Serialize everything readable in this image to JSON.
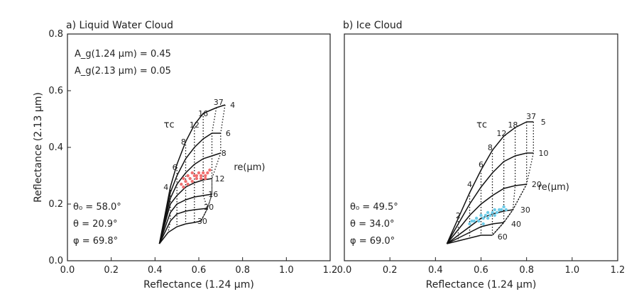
{
  "chart_data": [
    {
      "type": "line",
      "title": "a) Liquid Water Cloud",
      "xlabel": "Reflectance (1.24 µm)",
      "ylabel": "Reflectance (2.13 µm)",
      "xlim": [
        0.0,
        1.2
      ],
      "ylim": [
        0.0,
        0.8
      ],
      "xticks": [
        "0.0",
        "0.2",
        "0.4",
        "0.6",
        "0.8",
        "1.0",
        "1.2"
      ],
      "yticks": [
        "0.0",
        "0.2",
        "0.4",
        "0.6",
        "0.8"
      ],
      "grid": false,
      "annotations": {
        "albedo": [
          "A_g(1.24 µm) = 0.45",
          "A_g(2.13 µm) = 0.05"
        ],
        "geometry": [
          "θ₀ = 58.0°",
          "θ = 20.9°",
          "φ = 69.8°"
        ],
        "tau_symbol": "τc",
        "re_symbol": "re(µm)"
      },
      "tau_values": [
        "4",
        "6",
        "8",
        "12",
        "16",
        "37"
      ],
      "re_curves": [
        {
          "name": "4",
          "points": [
            [
              0.42,
              0.06
            ],
            [
              0.47,
              0.26
            ],
            [
              0.5,
              0.34
            ],
            [
              0.54,
              0.42
            ],
            [
              0.58,
              0.48
            ],
            [
              0.62,
              0.52
            ],
            [
              0.68,
              0.54
            ],
            [
              0.72,
              0.55
            ]
          ]
        },
        {
          "name": "6",
          "points": [
            [
              0.42,
              0.06
            ],
            [
              0.47,
              0.24
            ],
            [
              0.5,
              0.3
            ],
            [
              0.54,
              0.36
            ],
            [
              0.58,
              0.4
            ],
            [
              0.62,
              0.43
            ],
            [
              0.66,
              0.45
            ],
            [
              0.7,
              0.45
            ]
          ]
        },
        {
          "name": "8",
          "points": [
            [
              0.42,
              0.06
            ],
            [
              0.47,
              0.22
            ],
            [
              0.5,
              0.27
            ],
            [
              0.54,
              0.31
            ],
            [
              0.58,
              0.34
            ],
            [
              0.62,
              0.36
            ],
            [
              0.66,
              0.37
            ],
            [
              0.7,
              0.38
            ]
          ]
        },
        {
          "name": "12",
          "points": [
            [
              0.42,
              0.06
            ],
            [
              0.47,
              0.2
            ],
            [
              0.5,
              0.23
            ],
            [
              0.54,
              0.26
            ],
            [
              0.58,
              0.275
            ],
            [
              0.62,
              0.285
            ],
            [
              0.66,
              0.29
            ]
          ]
        },
        {
          "name": "16",
          "points": [
            [
              0.42,
              0.06
            ],
            [
              0.47,
              0.17
            ],
            [
              0.5,
              0.2
            ],
            [
              0.54,
              0.215
            ],
            [
              0.58,
              0.225
            ],
            [
              0.62,
              0.23
            ],
            [
              0.66,
              0.235
            ]
          ]
        },
        {
          "name": "20",
          "points": [
            [
              0.42,
              0.06
            ],
            [
              0.47,
              0.14
            ],
            [
              0.5,
              0.165
            ],
            [
              0.54,
              0.175
            ],
            [
              0.58,
              0.18
            ],
            [
              0.64,
              0.185
            ]
          ]
        },
        {
          "name": "30",
          "points": [
            [
              0.42,
              0.06
            ],
            [
              0.46,
              0.1
            ],
            [
              0.5,
              0.12
            ],
            [
              0.54,
              0.13
            ],
            [
              0.58,
              0.135
            ],
            [
              0.61,
              0.14
            ]
          ]
        }
      ],
      "tau_label_positions": [
        [
          0.45,
          0.25
        ],
        [
          0.49,
          0.32
        ],
        [
          0.53,
          0.41
        ],
        [
          0.58,
          0.47
        ],
        [
          0.62,
          0.51
        ],
        [
          0.69,
          0.55
        ]
      ],
      "re_label_positions": [
        [
          0.73,
          0.55
        ],
        [
          0.71,
          0.45
        ],
        [
          0.69,
          0.38
        ],
        [
          0.66,
          0.29
        ],
        [
          0.63,
          0.235
        ],
        [
          0.61,
          0.19
        ],
        [
          0.58,
          0.14
        ]
      ],
      "observations": {
        "name": "observed",
        "color": "#f07070",
        "points": [
          [
            0.52,
            0.27
          ],
          [
            0.53,
            0.29
          ],
          [
            0.54,
            0.28
          ],
          [
            0.55,
            0.3
          ],
          [
            0.56,
            0.29
          ],
          [
            0.57,
            0.31
          ],
          [
            0.58,
            0.3
          ],
          [
            0.59,
            0.3
          ],
          [
            0.6,
            0.31
          ],
          [
            0.61,
            0.3
          ],
          [
            0.62,
            0.31
          ],
          [
            0.63,
            0.3
          ],
          [
            0.64,
            0.31
          ],
          [
            0.65,
            0.32
          ],
          [
            0.53,
            0.26
          ],
          [
            0.55,
            0.27
          ],
          [
            0.57,
            0.28
          ],
          [
            0.59,
            0.29
          ],
          [
            0.61,
            0.29
          ],
          [
            0.63,
            0.29
          ]
        ]
      }
    },
    {
      "type": "line",
      "title": "b) Ice Cloud",
      "xlabel": "Reflectance (1.24 µm)",
      "ylabel": "",
      "xlim": [
        0.0,
        1.2
      ],
      "ylim": [
        0.0,
        0.8
      ],
      "xticks": [
        "0.0",
        "0.2",
        "0.4",
        "0.6",
        "0.8",
        "1.0",
        "1.2"
      ],
      "yticks": [],
      "grid": false,
      "annotations": {
        "geometry": [
          "θ₀ = 49.5°",
          "θ = 34.0°",
          "φ = 69.0°"
        ],
        "tau_symbol": "τc",
        "re_symbol": "re(µm)"
      },
      "tau_values": [
        "2",
        "4",
        "6",
        "8",
        "12",
        "18",
        "37"
      ],
      "re_curves": [
        {
          "name": "5",
          "points": [
            [
              0.45,
              0.06
            ],
            [
              0.5,
              0.15
            ],
            [
              0.55,
              0.24
            ],
            [
              0.6,
              0.32
            ],
            [
              0.65,
              0.39
            ],
            [
              0.7,
              0.44
            ],
            [
              0.75,
              0.47
            ],
            [
              0.8,
              0.49
            ],
            [
              0.83,
              0.49
            ]
          ]
        },
        {
          "name": "10",
          "points": [
            [
              0.45,
              0.06
            ],
            [
              0.5,
              0.13
            ],
            [
              0.55,
              0.2
            ],
            [
              0.6,
              0.26
            ],
            [
              0.65,
              0.31
            ],
            [
              0.7,
              0.35
            ],
            [
              0.75,
              0.37
            ],
            [
              0.8,
              0.38
            ],
            [
              0.83,
              0.38
            ]
          ]
        },
        {
          "name": "20",
          "points": [
            [
              0.45,
              0.06
            ],
            [
              0.5,
              0.11
            ],
            [
              0.55,
              0.16
            ],
            [
              0.6,
              0.2
            ],
            [
              0.65,
              0.23
            ],
            [
              0.7,
              0.255
            ],
            [
              0.75,
              0.265
            ],
            [
              0.8,
              0.27
            ]
          ]
        },
        {
          "name": "30",
          "points": [
            [
              0.45,
              0.06
            ],
            [
              0.5,
              0.09
            ],
            [
              0.55,
              0.12
            ],
            [
              0.6,
              0.15
            ],
            [
              0.65,
              0.165
            ],
            [
              0.7,
              0.175
            ],
            [
              0.74,
              0.18
            ]
          ]
        },
        {
          "name": "40",
          "points": [
            [
              0.45,
              0.06
            ],
            [
              0.5,
              0.08
            ],
            [
              0.55,
              0.1
            ],
            [
              0.6,
              0.12
            ],
            [
              0.65,
              0.13
            ],
            [
              0.7,
              0.135
            ]
          ]
        },
        {
          "name": "60",
          "points": [
            [
              0.45,
              0.06
            ],
            [
              0.5,
              0.07
            ],
            [
              0.55,
              0.08
            ],
            [
              0.6,
              0.09
            ],
            [
              0.65,
              0.09
            ]
          ]
        }
      ],
      "tau_label_positions": [
        [
          0.5,
          0.15
        ],
        [
          0.55,
          0.26
        ],
        [
          0.6,
          0.33
        ],
        [
          0.64,
          0.39
        ],
        [
          0.69,
          0.44
        ],
        [
          0.74,
          0.47
        ],
        [
          0.82,
          0.5
        ]
      ],
      "re_label_positions": [
        [
          0.85,
          0.49
        ],
        [
          0.84,
          0.38
        ],
        [
          0.81,
          0.27
        ],
        [
          0.76,
          0.18
        ],
        [
          0.72,
          0.13
        ],
        [
          0.66,
          0.085
        ]
      ],
      "observations": {
        "name": "observed",
        "color": "#6ecbe8",
        "points": [
          [
            0.55,
            0.13
          ],
          [
            0.57,
            0.14
          ],
          [
            0.58,
            0.15
          ],
          [
            0.6,
            0.16
          ],
          [
            0.61,
            0.15
          ],
          [
            0.62,
            0.16
          ],
          [
            0.63,
            0.17
          ],
          [
            0.64,
            0.16
          ],
          [
            0.65,
            0.17
          ],
          [
            0.66,
            0.18
          ],
          [
            0.67,
            0.17
          ],
          [
            0.68,
            0.18
          ],
          [
            0.69,
            0.18
          ],
          [
            0.7,
            0.19
          ],
          [
            0.71,
            0.18
          ],
          [
            0.56,
            0.14
          ],
          [
            0.59,
            0.14
          ],
          [
            0.61,
            0.13
          ],
          [
            0.63,
            0.15
          ],
          [
            0.66,
            0.16
          ]
        ]
      }
    }
  ]
}
